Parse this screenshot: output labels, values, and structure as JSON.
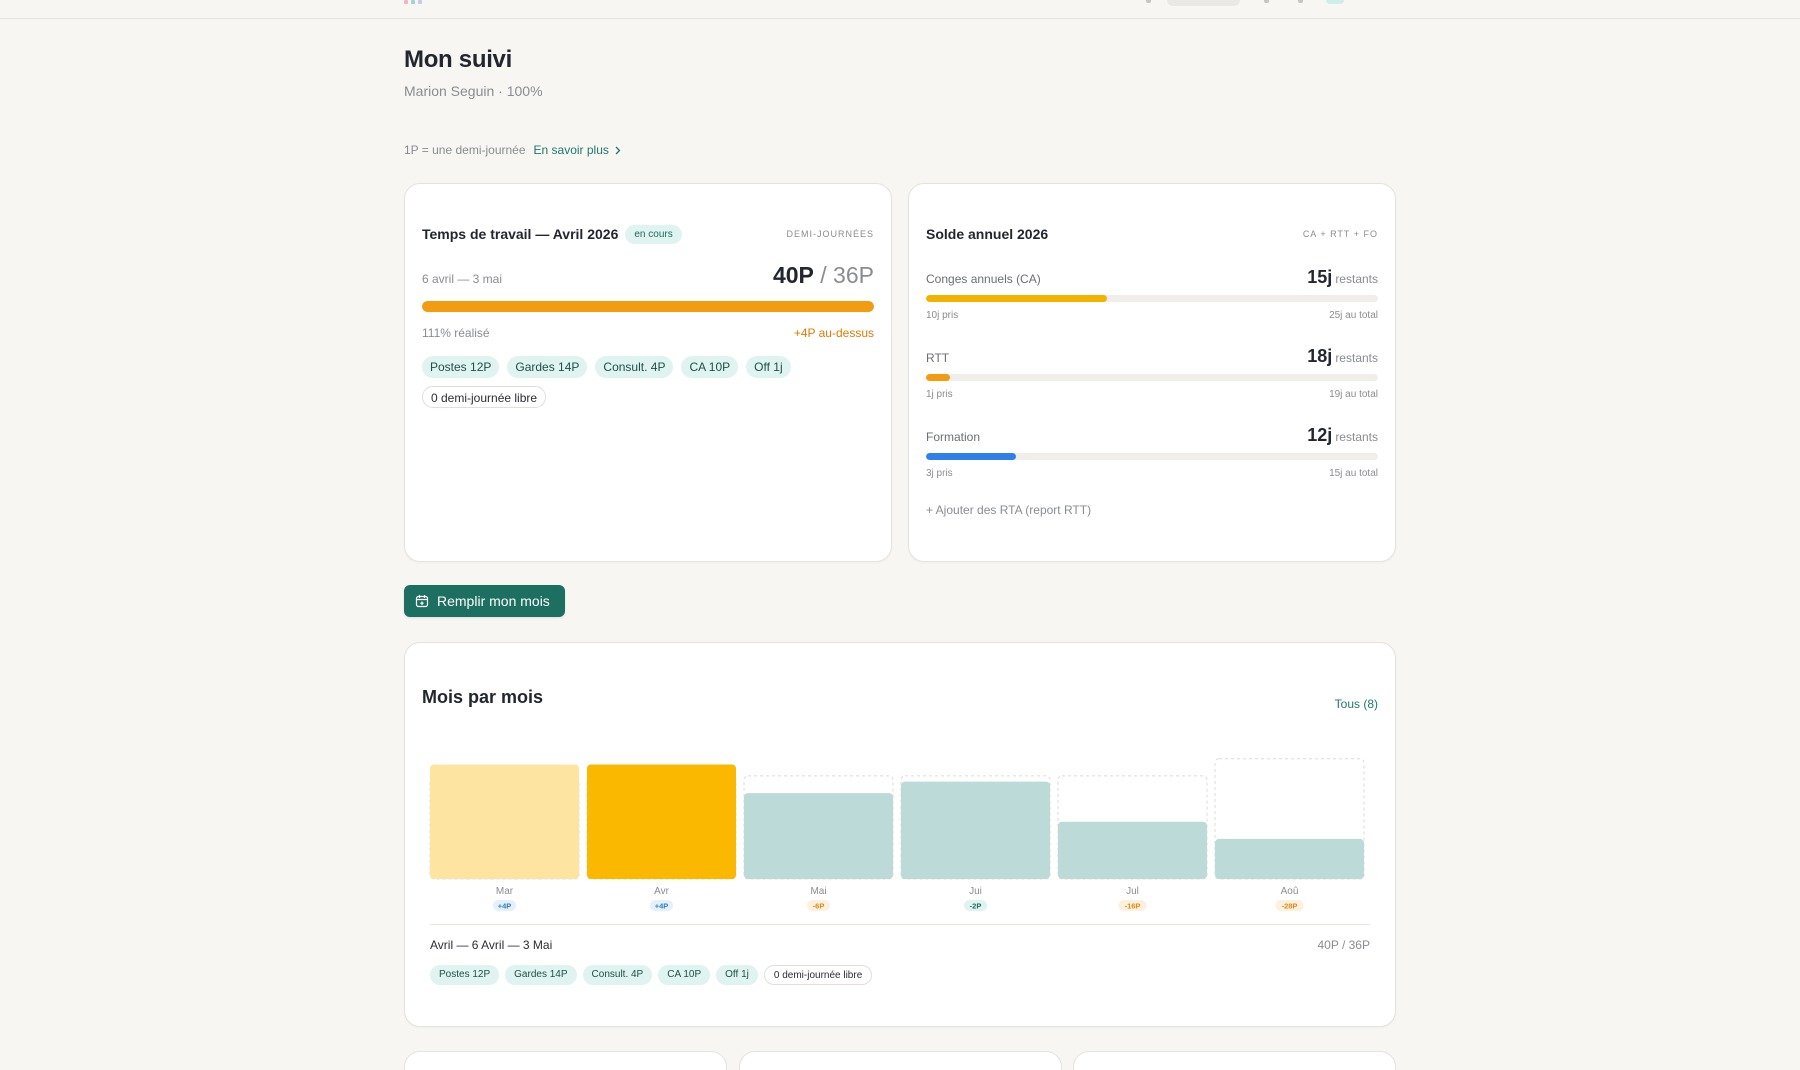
{
  "header": {
    "title": "Mon suivi",
    "subtitle": "Marion Seguin · 100%"
  },
  "info": {
    "text": "1P = une demi-journée",
    "link_label": "En savoir plus"
  },
  "work_card": {
    "title": "Temps de travail — Avril 2026",
    "badge": "en cours",
    "unit": "DEMI-JOURNÉES",
    "range": "6 avril — 3 mai",
    "done": "40P",
    "target": "/ 36P",
    "progress": 1.0,
    "percent_text": "111% réalisé",
    "above_text": "+4P au-dessus",
    "tags": [
      "Postes 12P",
      "Gardes 14P",
      "Consult. 4P",
      "CA 10P",
      "Off 1j"
    ],
    "free_tag": "0 demi-journée libre"
  },
  "balance_card": {
    "title": "Solde annuel 2026",
    "unit": "CA + RTT + FO",
    "items": [
      {
        "label": "Conges annuels (CA)",
        "value": "15j",
        "suffix": "restants",
        "taken": "10j pris",
        "total": "25j au total",
        "fraction": 0.4,
        "color": "#f2b300"
      },
      {
        "label": "RTT",
        "value": "18j",
        "suffix": "restants",
        "taken": "1j pris",
        "total": "19j au total",
        "fraction": 0.053,
        "color": "#f39c12"
      },
      {
        "label": "Formation",
        "value": "12j",
        "suffix": "restants",
        "taken": "3j pris",
        "total": "15j au total",
        "fraction": 0.2,
        "color": "#2f80ed"
      }
    ],
    "add_label": "+ Ajouter des RTA (report RTT)"
  },
  "fill_button": {
    "label": "Remplir mon mois"
  },
  "monthly": {
    "title": "Mois par mois",
    "all_label": "Tous (8)",
    "selected_label": "Avril — 6 Avril — 3 Mai",
    "selected_score": "40P / 36P",
    "selected_tags": [
      "Postes 12P",
      "Gardes 14P",
      "Consult. 4P",
      "CA 10P",
      "Off 1j"
    ],
    "selected_free": "0 demi-journée libre"
  },
  "chart_data": {
    "type": "bar",
    "categories": [
      "Mar",
      "Avr",
      "Mai",
      "Jui",
      "Jul",
      "Aoû"
    ],
    "values": [
      40,
      40,
      30,
      34,
      20,
      14
    ],
    "targets": [
      36,
      36,
      36,
      36,
      36,
      42
    ],
    "deltas": [
      "+4P",
      "+4P",
      "-6P",
      "-2P",
      "-16P",
      "-28P"
    ],
    "colors": [
      "#fde4a0",
      "#fbb800",
      "#bcdad8",
      "#bcdad8",
      "#bcdad8",
      "#bcdad8"
    ],
    "delta_colors": [
      {
        "bg": "#e4f1fb",
        "fg": "#2f7fb8"
      },
      {
        "bg": "#e4f1fb",
        "fg": "#2f7fb8"
      },
      {
        "bg": "#fdf0dc",
        "fg": "#d98a1a"
      },
      {
        "bg": "#dff3f0",
        "fg": "#1f6a5e"
      },
      {
        "bg": "#fdf0dc",
        "fg": "#d98a1a"
      },
      {
        "bg": "#fdf0dc",
        "fg": "#d98a1a"
      }
    ],
    "ylim": [
      0,
      44
    ]
  }
}
